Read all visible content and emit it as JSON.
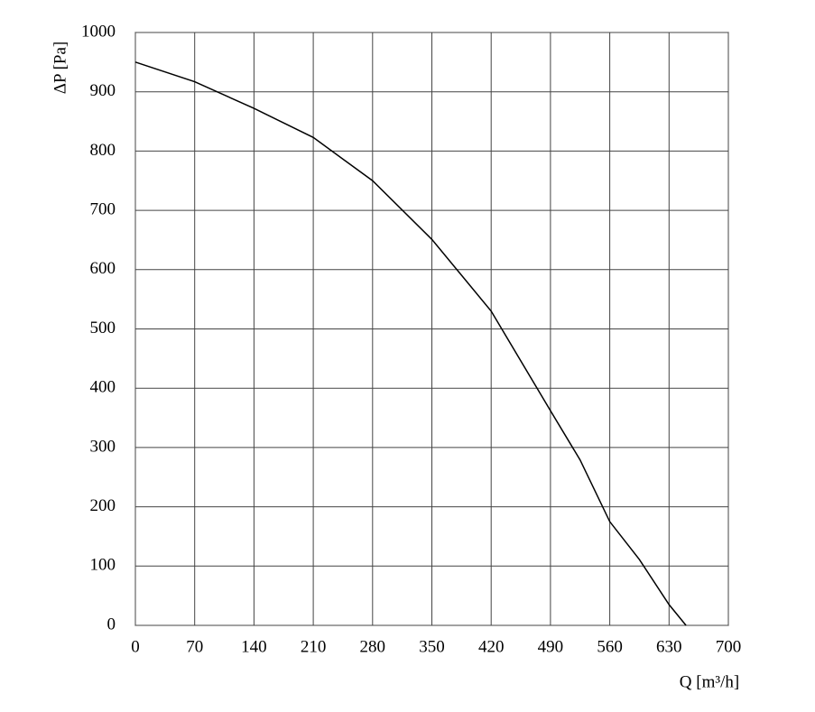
{
  "chart_data": {
    "type": "line",
    "x_label": "Q [m³/h]",
    "y_label": "ΔP [Pa]",
    "series": [
      {
        "color": "#000000",
        "x": [
          0,
          70,
          140,
          210,
          280,
          350,
          420,
          490,
          525,
          560,
          595,
          630,
          650
        ],
        "values": [
          950,
          917,
          872,
          823,
          750,
          651,
          530,
          362,
          279,
          175,
          111,
          35,
          0
        ]
      }
    ],
    "xlim": [
      0,
      700
    ],
    "xticks": [
      0,
      70,
      140,
      210,
      280,
      350,
      420,
      490,
      560,
      630,
      700
    ],
    "ylim": [
      0,
      1000
    ],
    "yticks": [
      0,
      100,
      200,
      300,
      400,
      500,
      600,
      700,
      800,
      900,
      1000
    ],
    "grid": true
  }
}
